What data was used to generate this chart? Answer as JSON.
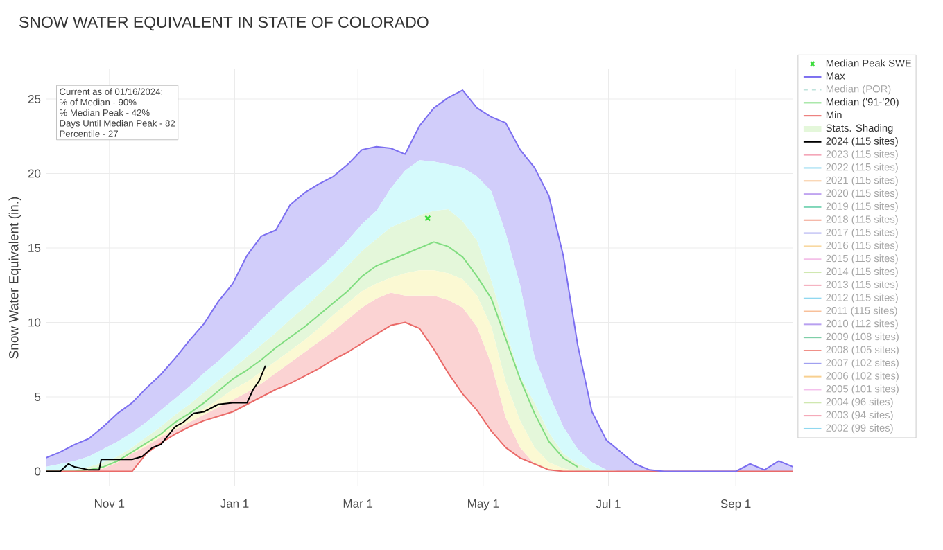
{
  "chart_data": {
    "type": "line",
    "title": "SNOW WATER EQUIVALENT IN STATE OF COLORADO",
    "ylabel": "Snow Water Equivalent (in.)",
    "annotations": [
      "Current as of 01/16/2024:",
      "% of Median - 90%",
      "% Median Peak - 42%",
      "Days Until Median Peak - 82",
      "Percentile - 27"
    ],
    "xlim": [
      "2023-10-01",
      "2024-09-29"
    ],
    "ylim": [
      -1,
      27
    ],
    "xticks": [
      {
        "value": "2023-11-01",
        "label": "Nov 1"
      },
      {
        "value": "2024-01-01",
        "label": "Jan 1"
      },
      {
        "value": "2024-03-01",
        "label": "Mar 1"
      },
      {
        "value": "2024-05-01",
        "label": "May 1"
      },
      {
        "value": "2024-07-01",
        "label": "Jul 1"
      },
      {
        "value": "2024-09-01",
        "label": "Sep 1"
      }
    ],
    "yticks": [
      0,
      5,
      10,
      15,
      20,
      25
    ],
    "grid": true,
    "legend": "right",
    "x": [
      "2023-10-01",
      "2023-10-08",
      "2023-10-15",
      "2023-10-22",
      "2023-10-29",
      "2023-11-05",
      "2023-11-12",
      "2023-11-19",
      "2023-11-26",
      "2023-12-03",
      "2023-12-10",
      "2023-12-17",
      "2023-12-24",
      "2023-12-31",
      "2024-01-07",
      "2024-01-14",
      "2024-01-21",
      "2024-01-28",
      "2024-02-04",
      "2024-02-11",
      "2024-02-18",
      "2024-02-25",
      "2024-03-03",
      "2024-03-10",
      "2024-03-17",
      "2024-03-24",
      "2024-03-31",
      "2024-04-07",
      "2024-04-14",
      "2024-04-21",
      "2024-04-28",
      "2024-05-05",
      "2024-05-12",
      "2024-05-19",
      "2024-05-26",
      "2024-06-02",
      "2024-06-09",
      "2024-06-16",
      "2024-06-23",
      "2024-06-30",
      "2024-07-07",
      "2024-07-14",
      "2024-07-21",
      "2024-07-28",
      "2024-08-04",
      "2024-08-11",
      "2024-08-18",
      "2024-08-25",
      "2024-09-01",
      "2024-09-08",
      "2024-09-15",
      "2024-09-22",
      "2024-09-29"
    ],
    "series": [
      {
        "name": "Median Peak SWE",
        "type": "scatter",
        "marker": "cross",
        "color": "#3ddc3d",
        "x": [
          "2024-04-04"
        ],
        "values": [
          17.0
        ]
      },
      {
        "name": "Max",
        "type": "area",
        "line_style": "solid",
        "color": "#7c6ff0",
        "values": [
          0.9,
          1.3,
          1.8,
          2.2,
          3.0,
          3.9,
          4.6,
          5.6,
          6.5,
          7.6,
          8.8,
          9.9,
          11.4,
          12.6,
          14.5,
          15.8,
          16.2,
          17.9,
          18.7,
          19.3,
          19.8,
          20.6,
          21.6,
          21.8,
          21.7,
          21.3,
          23.2,
          24.4,
          25.1,
          25.6,
          24.4,
          23.8,
          23.4,
          21.6,
          20.4,
          18.5,
          14.5,
          8.5,
          4.0,
          2.1,
          1.3,
          0.5,
          0.1,
          0,
          0,
          0,
          0,
          0,
          0,
          0.5,
          0.1,
          0.7,
          0.3
        ]
      },
      {
        "name": "Median (POR)",
        "color": "#bfe3dc",
        "line_style": "dashed",
        "values": [
          null,
          null,
          null,
          null,
          null,
          null,
          null,
          null,
          null,
          null,
          null,
          null,
          null,
          null,
          null,
          null,
          null,
          null,
          null,
          null,
          null,
          null,
          null,
          null,
          null,
          null,
          null,
          null,
          null,
          null,
          null,
          null,
          null,
          null,
          null,
          null,
          null,
          null,
          null,
          null,
          null,
          null,
          null,
          null,
          null,
          null,
          null,
          null,
          null,
          null,
          null,
          null,
          null
        ]
      },
      {
        "name": "Median ('91-'20)",
        "color": "#80dd80",
        "values": [
          0,
          0,
          0,
          0.1,
          0.3,
          0.7,
          1.3,
          1.9,
          2.5,
          3.3,
          3.9,
          4.6,
          5.4,
          6.2,
          6.8,
          7.5,
          8.3,
          9.0,
          9.7,
          10.5,
          11.3,
          12.1,
          13.1,
          13.8,
          14.2,
          14.6,
          15.0,
          15.4,
          15.1,
          14.4,
          13.1,
          11.6,
          8.9,
          6.2,
          3.9,
          2.0,
          0.9,
          0.3,
          null,
          null,
          null,
          null,
          null,
          null,
          null,
          null,
          null,
          null,
          null,
          null,
          null,
          null,
          null
        ]
      },
      {
        "name": "Min",
        "color": "#ea6a68",
        "values": [
          0,
          0,
          0,
          0,
          0,
          0,
          0,
          1.2,
          1.9,
          2.5,
          3.0,
          3.4,
          3.7,
          4.0,
          4.5,
          5.0,
          5.5,
          5.9,
          6.4,
          6.9,
          7.5,
          8.0,
          8.6,
          9.2,
          9.8,
          10.0,
          9.6,
          8.2,
          6.6,
          5.2,
          4.1,
          2.7,
          1.6,
          0.9,
          0.5,
          0.1,
          0,
          0,
          0,
          0,
          0,
          0,
          0,
          null,
          null,
          null,
          null,
          null,
          null,
          0,
          0,
          0,
          0
        ]
      },
      {
        "name": "Stats. Shading",
        "type": "area",
        "color": "#e4f7da",
        "values": [
          0,
          0,
          0.1,
          0.3,
          0.6,
          1.0,
          1.6,
          2.3,
          3.0,
          3.8,
          4.5,
          5.3,
          6.1,
          6.9,
          7.7,
          8.5,
          9.3,
          10.2,
          11.0,
          11.9,
          12.8,
          13.8,
          14.8,
          15.6,
          16.4,
          16.8,
          17.2,
          17.5,
          17.6,
          16.8,
          15.5,
          12.8,
          9.5,
          6.4,
          4.6,
          2.6,
          1.2,
          0.5,
          0.1,
          0,
          0,
          0,
          0,
          0,
          0,
          0,
          0,
          0,
          0,
          0,
          0,
          0,
          0
        ]
      },
      {
        "type": "area",
        "color": "#fbd3d3",
        "values": [
          0,
          0,
          0,
          0,
          0.2,
          0.6,
          1.2,
          1.7,
          2.3,
          2.8,
          3.3,
          3.8,
          4.3,
          4.8,
          5.3,
          5.9,
          6.6,
          7.3,
          8.0,
          8.7,
          9.4,
          10.2,
          11.0,
          11.6,
          12.0,
          11.8,
          11.8,
          11.8,
          11.5,
          11.0,
          9.7,
          7.2,
          3.6,
          1.6,
          0.5,
          0.1,
          0,
          0,
          0,
          0,
          0,
          0,
          0,
          0,
          0,
          0,
          0,
          0,
          0,
          0,
          0,
          0,
          0
        ]
      },
      {
        "type": "area",
        "color": "#fbf9d3",
        "values": [
          0,
          0,
          0,
          0,
          0.3,
          0.7,
          1.3,
          1.9,
          2.5,
          3.1,
          3.6,
          4.2,
          4.8,
          5.5,
          6.0,
          6.7,
          7.4,
          8.1,
          8.8,
          9.6,
          10.5,
          11.3,
          12.1,
          12.6,
          13.0,
          13.3,
          13.5,
          13.5,
          13.3,
          12.9,
          11.8,
          9.7,
          6.0,
          3.4,
          1.6,
          0.6,
          0.2,
          0,
          0,
          0,
          0,
          0,
          0,
          0,
          0,
          0,
          0,
          0,
          0,
          0,
          0,
          0,
          0
        ]
      },
      {
        "type": "area",
        "color": "#d5fafc",
        "values": [
          0.3,
          0.5,
          0.7,
          1.0,
          1.5,
          2.0,
          2.6,
          3.3,
          4.1,
          4.9,
          5.7,
          6.6,
          7.4,
          8.3,
          9.2,
          10.2,
          11.1,
          12.0,
          12.8,
          13.6,
          14.5,
          15.5,
          16.6,
          17.5,
          19.0,
          20.2,
          20.9,
          20.8,
          20.6,
          20.4,
          19.8,
          18.8,
          16.0,
          12.5,
          7.7,
          5.2,
          3.0,
          1.5,
          0.6,
          0.1,
          0,
          0,
          0,
          0,
          0,
          0,
          0,
          0,
          0,
          0,
          0,
          0,
          0
        ]
      },
      {
        "name": "2024 (115 sites)",
        "color": "#000000",
        "x": [
          "2023-10-01",
          "2023-10-08",
          "2023-10-12",
          "2023-10-15",
          "2023-10-22",
          "2023-10-27",
          "2023-10-28",
          "2023-11-05",
          "2023-11-12",
          "2023-11-17",
          "2023-11-22",
          "2023-11-26",
          "2023-12-03",
          "2023-12-07",
          "2023-12-12",
          "2023-12-17",
          "2023-12-24",
          "2023-12-31",
          "2024-01-07",
          "2024-01-10",
          "2024-01-13",
          "2024-01-16"
        ],
        "values": [
          0,
          0,
          0.5,
          0.3,
          0.1,
          0.1,
          0.8,
          0.8,
          0.8,
          1.0,
          1.6,
          1.8,
          3.0,
          3.3,
          3.9,
          4.0,
          4.5,
          4.6,
          4.6,
          5.5,
          6.1,
          7.1
        ]
      },
      {
        "name": "2023 (115 sites)",
        "color": "#f4a6b8",
        "values": [
          null,
          null,
          null,
          null,
          null,
          null,
          null,
          null,
          null,
          null,
          null,
          null,
          null,
          null,
          null,
          null,
          null,
          null,
          null,
          null,
          null,
          null,
          null,
          null,
          null,
          null,
          null,
          null,
          null,
          null,
          null,
          null,
          null,
          null,
          null,
          null,
          null,
          null,
          null,
          null,
          null,
          null,
          null,
          null,
          null,
          null,
          null,
          null,
          null,
          null,
          null,
          null,
          null
        ]
      },
      {
        "name": "2022 (115 sites)",
        "color": "#8fd8f0",
        "values": [
          null,
          null,
          null,
          null,
          null,
          null,
          null,
          null,
          null,
          null,
          null,
          null,
          null,
          null,
          null,
          null,
          null,
          null,
          null,
          null,
          null,
          null,
          null,
          null,
          null,
          null,
          null,
          null,
          null,
          null,
          null,
          null,
          null,
          null,
          null,
          null,
          null,
          null,
          null,
          null,
          null,
          null,
          null,
          null,
          null,
          null,
          null,
          null,
          null,
          null,
          null,
          null,
          null
        ]
      },
      {
        "name": "2021 (115 sites)",
        "color": "#f8c89a",
        "values": [
          null,
          null,
          null,
          null,
          null,
          null,
          null,
          null,
          null,
          null,
          null,
          null,
          null,
          null,
          null,
          null,
          null,
          null,
          null,
          null,
          null,
          null,
          null,
          null,
          null,
          null,
          null,
          null,
          null,
          null,
          null,
          null,
          null,
          null,
          null,
          null,
          null,
          null,
          null,
          null,
          null,
          null,
          null,
          null,
          null,
          null,
          null,
          null,
          null,
          null,
          null,
          null,
          null
        ]
      },
      {
        "name": "2020 (115 sites)",
        "color": "#c0a4f0",
        "values": [
          null,
          null,
          null,
          null,
          null,
          null,
          null,
          null,
          null,
          null,
          null,
          null,
          null,
          null,
          null,
          null,
          null,
          null,
          null,
          null,
          null,
          null,
          null,
          null,
          null,
          null,
          null,
          null,
          null,
          null,
          null,
          null,
          null,
          null,
          null,
          null,
          null,
          null,
          null,
          null,
          null,
          null,
          null,
          null,
          null,
          null,
          null,
          null,
          null,
          null,
          null,
          null,
          null
        ]
      },
      {
        "name": "2019 (115 sites)",
        "color": "#7fd6b8",
        "values": [
          null,
          null,
          null,
          null,
          null,
          null,
          null,
          null,
          null,
          null,
          null,
          null,
          null,
          null,
          null,
          null,
          null,
          null,
          null,
          null,
          null,
          null,
          null,
          null,
          null,
          null,
          null,
          null,
          null,
          null,
          null,
          null,
          null,
          null,
          null,
          null,
          null,
          null,
          null,
          null,
          null,
          null,
          null,
          null,
          null,
          null,
          null,
          null,
          null,
          null,
          null,
          null,
          null
        ]
      },
      {
        "name": "2018 (115 sites)",
        "color": "#f2a08c",
        "values": [
          null,
          null,
          null,
          null,
          null,
          null,
          null,
          null,
          null,
          null,
          null,
          null,
          null,
          null,
          null,
          null,
          null,
          null,
          null,
          null,
          null,
          null,
          null,
          null,
          null,
          null,
          null,
          null,
          null,
          null,
          null,
          null,
          null,
          null,
          null,
          null,
          null,
          null,
          null,
          null,
          null,
          null,
          null,
          null,
          null,
          null,
          null,
          null,
          null,
          null,
          null,
          null,
          null
        ]
      },
      {
        "name": "2017 (115 sites)",
        "color": "#a9a9f0",
        "values": [
          null,
          null,
          null,
          null,
          null,
          null,
          null,
          null,
          null,
          null,
          null,
          null,
          null,
          null,
          null,
          null,
          null,
          null,
          null,
          null,
          null,
          null,
          null,
          null,
          null,
          null,
          null,
          null,
          null,
          null,
          null,
          null,
          null,
          null,
          null,
          null,
          null,
          null,
          null,
          null,
          null,
          null,
          null,
          null,
          null,
          null,
          null,
          null,
          null,
          null,
          null,
          null,
          null
        ]
      },
      {
        "name": "2016 (115 sites)",
        "color": "#f8d8a0",
        "values": [
          null,
          null,
          null,
          null,
          null,
          null,
          null,
          null,
          null,
          null,
          null,
          null,
          null,
          null,
          null,
          null,
          null,
          null,
          null,
          null,
          null,
          null,
          null,
          null,
          null,
          null,
          null,
          null,
          null,
          null,
          null,
          null,
          null,
          null,
          null,
          null,
          null,
          null,
          null,
          null,
          null,
          null,
          null,
          null,
          null,
          null,
          null,
          null,
          null,
          null,
          null,
          null,
          null
        ]
      },
      {
        "name": "2015 (115 sites)",
        "color": "#f4c0e8",
        "values": [
          null,
          null,
          null,
          null,
          null,
          null,
          null,
          null,
          null,
          null,
          null,
          null,
          null,
          null,
          null,
          null,
          null,
          null,
          null,
          null,
          null,
          null,
          null,
          null,
          null,
          null,
          null,
          null,
          null,
          null,
          null,
          null,
          null,
          null,
          null,
          null,
          null,
          null,
          null,
          null,
          null,
          null,
          null,
          null,
          null,
          null,
          null,
          null,
          null,
          null,
          null,
          null,
          null
        ]
      },
      {
        "name": "2014 (115 sites)",
        "color": "#d0e8b0",
        "values": [
          null,
          null,
          null,
          null,
          null,
          null,
          null,
          null,
          null,
          null,
          null,
          null,
          null,
          null,
          null,
          null,
          null,
          null,
          null,
          null,
          null,
          null,
          null,
          null,
          null,
          null,
          null,
          null,
          null,
          null,
          null,
          null,
          null,
          null,
          null,
          null,
          null,
          null,
          null,
          null,
          null,
          null,
          null,
          null,
          null,
          null,
          null,
          null,
          null,
          null,
          null,
          null,
          null
        ]
      },
      {
        "name": "2013 (115 sites)",
        "color": "#f4a8b8",
        "values": [
          null,
          null,
          null,
          null,
          null,
          null,
          null,
          null,
          null,
          null,
          null,
          null,
          null,
          null,
          null,
          null,
          null,
          null,
          null,
          null,
          null,
          null,
          null,
          null,
          null,
          null,
          null,
          null,
          null,
          null,
          null,
          null,
          null,
          null,
          null,
          null,
          null,
          null,
          null,
          null,
          null,
          null,
          null,
          null,
          null,
          null,
          null,
          null,
          null,
          null,
          null,
          null,
          null
        ]
      },
      {
        "name": "2012 (115 sites)",
        "color": "#90d8f0",
        "values": [
          null,
          null,
          null,
          null,
          null,
          null,
          null,
          null,
          null,
          null,
          null,
          null,
          null,
          null,
          null,
          null,
          null,
          null,
          null,
          null,
          null,
          null,
          null,
          null,
          null,
          null,
          null,
          null,
          null,
          null,
          null,
          null,
          null,
          null,
          null,
          null,
          null,
          null,
          null,
          null,
          null,
          null,
          null,
          null,
          null,
          null,
          null,
          null,
          null,
          null,
          null,
          null,
          null
        ]
      },
      {
        "name": "2011 (115 sites)",
        "color": "#f8c09a",
        "values": [
          null,
          null,
          null,
          null,
          null,
          null,
          null,
          null,
          null,
          null,
          null,
          null,
          null,
          null,
          null,
          null,
          null,
          null,
          null,
          null,
          null,
          null,
          null,
          null,
          null,
          null,
          null,
          null,
          null,
          null,
          null,
          null,
          null,
          null,
          null,
          null,
          null,
          null,
          null,
          null,
          null,
          null,
          null,
          null,
          null,
          null,
          null,
          null,
          null,
          null,
          null,
          null,
          null
        ]
      },
      {
        "name": "2010 (112 sites)",
        "color": "#b8a0f0",
        "values": [
          null,
          null,
          null,
          null,
          null,
          null,
          null,
          null,
          null,
          null,
          null,
          null,
          null,
          null,
          null,
          null,
          null,
          null,
          null,
          null,
          null,
          null,
          null,
          null,
          null,
          null,
          null,
          null,
          null,
          null,
          null,
          null,
          null,
          null,
          null,
          null,
          null,
          null,
          null,
          null,
          null,
          null,
          null,
          null,
          null,
          null,
          null,
          null,
          null,
          null,
          null,
          null,
          null
        ]
      },
      {
        "name": "2009 (108 sites)",
        "color": "#7fcfa8",
        "values": [
          null,
          null,
          null,
          null,
          null,
          null,
          null,
          null,
          null,
          null,
          null,
          null,
          null,
          null,
          null,
          null,
          null,
          null,
          null,
          null,
          null,
          null,
          null,
          null,
          null,
          null,
          null,
          null,
          null,
          null,
          null,
          null,
          null,
          null,
          null,
          null,
          null,
          null,
          null,
          null,
          null,
          null,
          null,
          null,
          null,
          null,
          null,
          null,
          null,
          null,
          null,
          null,
          null
        ]
      },
      {
        "name": "2008 (105 sites)",
        "color": "#f09088",
        "values": [
          null,
          null,
          null,
          null,
          null,
          null,
          null,
          null,
          null,
          null,
          null,
          null,
          null,
          null,
          null,
          null,
          null,
          null,
          null,
          null,
          null,
          null,
          null,
          null,
          null,
          null,
          null,
          null,
          null,
          null,
          null,
          null,
          null,
          null,
          null,
          null,
          null,
          null,
          null,
          null,
          null,
          null,
          null,
          null,
          null,
          null,
          null,
          null,
          null,
          null,
          null,
          null,
          null
        ]
      },
      {
        "name": "2007 (102 sites)",
        "color": "#a0a0f0",
        "values": [
          null,
          null,
          null,
          null,
          null,
          null,
          null,
          null,
          null,
          null,
          null,
          null,
          null,
          null,
          null,
          null,
          null,
          null,
          null,
          null,
          null,
          null,
          null,
          null,
          null,
          null,
          null,
          null,
          null,
          null,
          null,
          null,
          null,
          null,
          null,
          null,
          null,
          null,
          null,
          null,
          null,
          null,
          null,
          null,
          null,
          null,
          null,
          null,
          null,
          null,
          null,
          null,
          null
        ]
      },
      {
        "name": "2006 (102 sites)",
        "color": "#f8d090",
        "values": [
          null,
          null,
          null,
          null,
          null,
          null,
          null,
          null,
          null,
          null,
          null,
          null,
          null,
          null,
          null,
          null,
          null,
          null,
          null,
          null,
          null,
          null,
          null,
          null,
          null,
          null,
          null,
          null,
          null,
          null,
          null,
          null,
          null,
          null,
          null,
          null,
          null,
          null,
          null,
          null,
          null,
          null,
          null,
          null,
          null,
          null,
          null,
          null,
          null,
          null,
          null,
          null,
          null
        ]
      },
      {
        "name": "2005 (101 sites)",
        "color": "#f4c0ec",
        "values": [
          null,
          null,
          null,
          null,
          null,
          null,
          null,
          null,
          null,
          null,
          null,
          null,
          null,
          null,
          null,
          null,
          null,
          null,
          null,
          null,
          null,
          null,
          null,
          null,
          null,
          null,
          null,
          null,
          null,
          null,
          null,
          null,
          null,
          null,
          null,
          null,
          null,
          null,
          null,
          null,
          null,
          null,
          null,
          null,
          null,
          null,
          null,
          null,
          null,
          null,
          null,
          null,
          null
        ]
      },
      {
        "name": "2004 (96 sites)",
        "color": "#d0e8b0",
        "values": [
          null,
          null,
          null,
          null,
          null,
          null,
          null,
          null,
          null,
          null,
          null,
          null,
          null,
          null,
          null,
          null,
          null,
          null,
          null,
          null,
          null,
          null,
          null,
          null,
          null,
          null,
          null,
          null,
          null,
          null,
          null,
          null,
          null,
          null,
          null,
          null,
          null,
          null,
          null,
          null,
          null,
          null,
          null,
          null,
          null,
          null,
          null,
          null,
          null,
          null,
          null,
          null,
          null
        ]
      },
      {
        "name": "2003 (94 sites)",
        "color": "#f4a0b0",
        "values": [
          null,
          null,
          null,
          null,
          null,
          null,
          null,
          null,
          null,
          null,
          null,
          null,
          null,
          null,
          null,
          null,
          null,
          null,
          null,
          null,
          null,
          null,
          null,
          null,
          null,
          null,
          null,
          null,
          null,
          null,
          null,
          null,
          null,
          null,
          null,
          null,
          null,
          null,
          null,
          null,
          null,
          null,
          null,
          null,
          null,
          null,
          null,
          null,
          null,
          null,
          null,
          null,
          null
        ]
      },
      {
        "name": "2002 (99 sites)",
        "color": "#90d8f0",
        "values": [
          null,
          null,
          null,
          null,
          null,
          null,
          null,
          null,
          null,
          null,
          null,
          null,
          null,
          null,
          null,
          null,
          null,
          null,
          null,
          null,
          null,
          null,
          null,
          null,
          null,
          null,
          null,
          null,
          null,
          null,
          null,
          null,
          null,
          null,
          null,
          null,
          null,
          null,
          null,
          null,
          null,
          null,
          null,
          null,
          null,
          null,
          null,
          null,
          null,
          null,
          null,
          null,
          null
        ]
      }
    ]
  }
}
